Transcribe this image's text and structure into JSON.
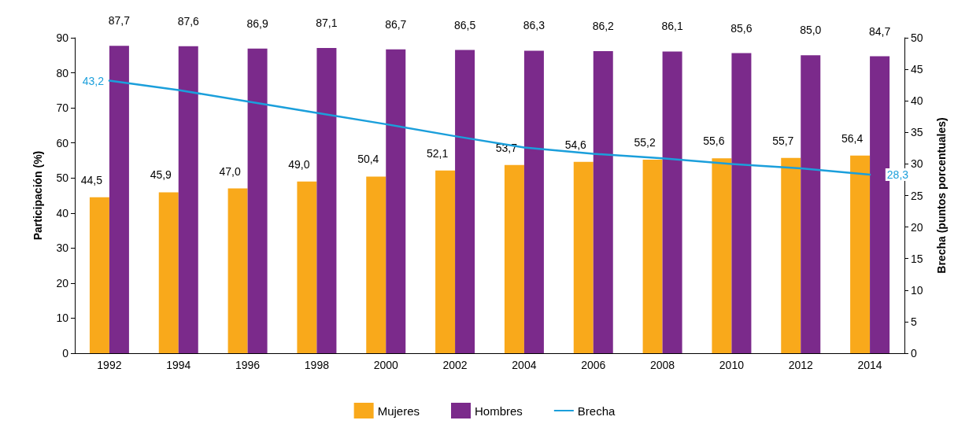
{
  "chart_data": {
    "type": "bar",
    "ylabel": "Participación (%)",
    "y2label": "Brecha (puntos porcentuales)",
    "categories": [
      "1992",
      "1994",
      "1996",
      "1998",
      "2000",
      "2002",
      "2004",
      "2006",
      "2008",
      "2010",
      "2012",
      "2014"
    ],
    "series": [
      {
        "name": "Mujeres",
        "color": "#f9a91b",
        "values": [
          44.5,
          45.9,
          47.0,
          49.0,
          50.4,
          52.1,
          53.7,
          54.6,
          55.2,
          55.6,
          55.7,
          56.4
        ],
        "value_labels": [
          "44,5",
          "45,9",
          "47,0",
          "49,0",
          "50,4",
          "52,1",
          "53,7",
          "54,6",
          "55,2",
          "55,6",
          "55,7",
          "56,4"
        ]
      },
      {
        "name": "Hombres",
        "color": "#7b2a8b",
        "values": [
          87.7,
          87.6,
          86.9,
          87.1,
          86.7,
          86.5,
          86.3,
          86.2,
          86.1,
          85.6,
          85.0,
          84.7
        ],
        "value_labels": [
          "87,7",
          "87,6",
          "86,9",
          "87,1",
          "86,7",
          "86,5",
          "86,3",
          "86,2",
          "86,1",
          "85,6",
          "85,0",
          "84,7"
        ]
      },
      {
        "name": "Brecha",
        "type": "line",
        "axis": "y2",
        "color": "#1b9fdb",
        "values": [
          43.2,
          41.7,
          39.9,
          38.1,
          36.3,
          34.4,
          32.6,
          31.6,
          30.9,
          30.0,
          29.3,
          28.3
        ],
        "value_labels": [
          "43,2",
          null,
          null,
          null,
          null,
          null,
          null,
          null,
          null,
          null,
          null,
          "28,3"
        ]
      }
    ],
    "ylim": [
      0,
      90
    ],
    "yticks": [
      0,
      10,
      20,
      30,
      40,
      50,
      60,
      70,
      80,
      90
    ],
    "y2lim": [
      0,
      50
    ],
    "y2ticks": [
      0,
      5,
      10,
      15,
      20,
      25,
      30,
      35,
      40,
      45,
      50
    ],
    "grid": false,
    "legend": "bottom",
    "marker": "none",
    "line_style": "solid"
  }
}
